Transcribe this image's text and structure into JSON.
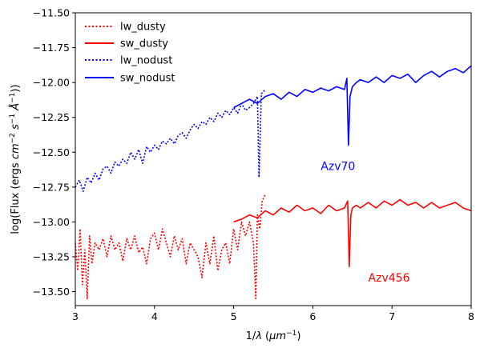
{
  "chart_data": {
    "type": "line",
    "xlabel_main": "1/",
    "xlabel_sym": "λ",
    "xlabel_open": " (",
    "xlabel_unit": "μm",
    "xlabel_exp": "−1",
    "xlabel_close": ")",
    "ylabel_main": "log(Flux (ergs ",
    "ylabel_cm": "cm",
    "ylabel_exp1": "−2",
    "ylabel_s": " s",
    "ylabel_exp2": "−1",
    "ylabel_A": " Å",
    "ylabel_exp3": "−1",
    "ylabel_close": "))",
    "xlim": [
      3,
      8
    ],
    "ylim": [
      -13.6,
      -11.5
    ],
    "x_ticks": [
      3,
      4,
      5,
      6,
      7,
      8
    ],
    "x_tick_labels": [
      "3",
      "4",
      "5",
      "6",
      "7",
      "8"
    ],
    "y_ticks": [
      -11.5,
      -11.75,
      -12.0,
      -12.25,
      -12.5,
      -12.75,
      -13.0,
      -13.25,
      -13.5
    ],
    "y_tick_labels": [
      "−11.50",
      "−11.75",
      "−12.00",
      "−12.25",
      "−12.50",
      "−12.75",
      "−13.00",
      "−13.25",
      "−13.50"
    ],
    "grid": false,
    "legend_position": "top-left",
    "series": [
      {
        "name": "lw_dusty",
        "color": "#ff0000",
        "style": "dotted",
        "x": [
          3.0,
          3.03,
          3.06,
          3.09,
          3.12,
          3.15,
          3.18,
          3.21,
          3.25,
          3.3,
          3.35,
          3.4,
          3.45,
          3.5,
          3.55,
          3.6,
          3.65,
          3.7,
          3.75,
          3.8,
          3.85,
          3.9,
          3.95,
          4.0,
          4.05,
          4.1,
          4.15,
          4.2,
          4.25,
          4.3,
          4.35,
          4.4,
          4.45,
          4.5,
          4.55,
          4.6,
          4.65,
          4.7,
          4.75,
          4.8,
          4.85,
          4.9,
          4.95,
          5.0,
          5.05,
          5.1,
          5.15,
          5.2,
          5.25,
          5.28,
          5.3,
          5.33,
          5.36,
          5.4
        ],
        "y": [
          -13.15,
          -13.35,
          -13.05,
          -13.45,
          -13.2,
          -13.55,
          -13.1,
          -13.3,
          -13.15,
          -13.2,
          -13.12,
          -13.25,
          -13.1,
          -13.2,
          -13.15,
          -13.28,
          -13.12,
          -13.2,
          -13.1,
          -13.22,
          -13.18,
          -13.3,
          -13.12,
          -13.08,
          -13.2,
          -13.05,
          -13.15,
          -13.25,
          -13.1,
          -13.2,
          -13.12,
          -13.3,
          -13.15,
          -13.2,
          -13.25,
          -13.4,
          -13.15,
          -13.3,
          -13.1,
          -13.35,
          -13.2,
          -13.15,
          -13.3,
          -13.05,
          -13.2,
          -13.0,
          -13.1,
          -13.0,
          -13.15,
          -13.55,
          -12.95,
          -13.05,
          -12.85,
          -12.8
        ]
      },
      {
        "name": "sw_dusty",
        "color": "#ff0000",
        "style": "solid",
        "x": [
          5.0,
          5.1,
          5.2,
          5.3,
          5.4,
          5.5,
          5.6,
          5.7,
          5.8,
          5.9,
          6.0,
          6.1,
          6.2,
          6.3,
          6.4,
          6.44,
          6.46,
          6.48,
          6.5,
          6.55,
          6.6,
          6.7,
          6.8,
          6.9,
          7.0,
          7.1,
          7.2,
          7.3,
          7.4,
          7.5,
          7.6,
          7.7,
          7.8,
          7.9,
          8.0
        ],
        "y": [
          -13.0,
          -12.98,
          -12.95,
          -12.97,
          -12.92,
          -12.95,
          -12.9,
          -12.93,
          -12.88,
          -12.92,
          -12.9,
          -12.94,
          -12.88,
          -12.92,
          -12.9,
          -12.85,
          -13.32,
          -12.95,
          -12.9,
          -12.88,
          -12.9,
          -12.86,
          -12.9,
          -12.85,
          -12.88,
          -12.84,
          -12.88,
          -12.86,
          -12.9,
          -12.86,
          -12.9,
          -12.88,
          -12.86,
          -12.9,
          -12.92
        ]
      },
      {
        "name": "lw_nodust",
        "color": "#0000ff",
        "style": "dotted",
        "x": [
          3.0,
          3.05,
          3.1,
          3.15,
          3.2,
          3.25,
          3.3,
          3.35,
          3.4,
          3.45,
          3.5,
          3.55,
          3.6,
          3.65,
          3.7,
          3.75,
          3.8,
          3.85,
          3.9,
          3.95,
          4.0,
          4.05,
          4.1,
          4.15,
          4.2,
          4.25,
          4.3,
          4.35,
          4.4,
          4.45,
          4.5,
          4.55,
          4.6,
          4.65,
          4.7,
          4.75,
          4.8,
          4.85,
          4.9,
          4.95,
          5.0,
          5.05,
          5.1,
          5.15,
          5.2,
          5.25,
          5.3,
          5.32,
          5.35,
          5.4
        ],
        "y": [
          -12.75,
          -12.7,
          -12.78,
          -12.68,
          -12.72,
          -12.65,
          -12.7,
          -12.62,
          -12.6,
          -12.65,
          -12.57,
          -12.6,
          -12.55,
          -12.58,
          -12.5,
          -12.55,
          -12.48,
          -12.58,
          -12.46,
          -12.5,
          -12.45,
          -12.48,
          -12.42,
          -12.44,
          -12.4,
          -12.44,
          -12.38,
          -12.36,
          -12.4,
          -12.34,
          -12.3,
          -12.33,
          -12.28,
          -12.3,
          -12.25,
          -12.28,
          -12.22,
          -12.25,
          -12.2,
          -12.23,
          -12.18,
          -12.22,
          -12.15,
          -12.2,
          -12.18,
          -12.15,
          -12.1,
          -12.68,
          -12.08,
          -12.05
        ]
      },
      {
        "name": "sw_nodust",
        "color": "#0000ff",
        "style": "solid",
        "x": [
          5.0,
          5.1,
          5.2,
          5.3,
          5.4,
          5.5,
          5.6,
          5.7,
          5.8,
          5.9,
          6.0,
          6.1,
          6.2,
          6.3,
          6.4,
          6.43,
          6.45,
          6.47,
          6.5,
          6.55,
          6.6,
          6.7,
          6.8,
          6.9,
          7.0,
          7.1,
          7.2,
          7.3,
          7.4,
          7.5,
          7.6,
          7.7,
          7.8,
          7.9,
          8.0
        ],
        "y": [
          -12.18,
          -12.15,
          -12.12,
          -12.15,
          -12.1,
          -12.08,
          -12.12,
          -12.07,
          -12.1,
          -12.05,
          -12.07,
          -12.04,
          -12.06,
          -12.03,
          -12.05,
          -11.97,
          -12.45,
          -12.1,
          -12.03,
          -12.0,
          -11.98,
          -12.0,
          -11.96,
          -12.0,
          -11.95,
          -11.97,
          -11.94,
          -12.0,
          -11.95,
          -11.92,
          -11.96,
          -11.92,
          -11.9,
          -11.93,
          -11.88
        ]
      }
    ],
    "annotations": [
      {
        "text": "Azv70",
        "x": 6.1,
        "y": -12.6,
        "color": "#0000ff"
      },
      {
        "text": "Azv456",
        "x": 6.7,
        "y": -13.4,
        "color": "#ff0000"
      }
    ]
  }
}
